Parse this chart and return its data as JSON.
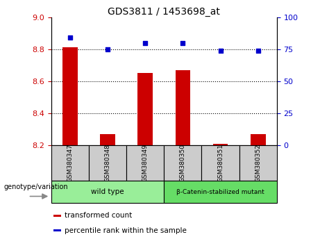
{
  "title": "GDS3811 / 1453698_at",
  "samples": [
    "GSM380347",
    "GSM380348",
    "GSM380349",
    "GSM380350",
    "GSM380351",
    "GSM380352"
  ],
  "bar_values": [
    8.81,
    8.27,
    8.65,
    8.67,
    8.21,
    8.27
  ],
  "bar_bottom": 8.2,
  "percentile_values": [
    84,
    75,
    80,
    80,
    74,
    74
  ],
  "ylim_left": [
    8.2,
    9.0
  ],
  "ylim_right": [
    0,
    100
  ],
  "yticks_left": [
    8.2,
    8.4,
    8.6,
    8.8,
    9.0
  ],
  "yticks_right": [
    0,
    25,
    50,
    75,
    100
  ],
  "bar_color": "#cc0000",
  "dot_color": "#0000cc",
  "groups": [
    {
      "label": "wild type",
      "samples": [
        0,
        1,
        2
      ],
      "color": "#99ee99"
    },
    {
      "label": "β-Catenin-stabilized mutant",
      "samples": [
        3,
        4,
        5
      ],
      "color": "#66dd66"
    }
  ],
  "xlabel_group": "genotype/variation",
  "legend_items": [
    {
      "color": "#cc0000",
      "label": "transformed count"
    },
    {
      "color": "#0000cc",
      "label": "percentile rank within the sample"
    }
  ],
  "tick_label_color_left": "#cc0000",
  "tick_label_color_right": "#0000cc",
  "sample_box_color": "#cccccc",
  "grid_yticks": [
    8.4,
    8.6,
    8.8
  ]
}
